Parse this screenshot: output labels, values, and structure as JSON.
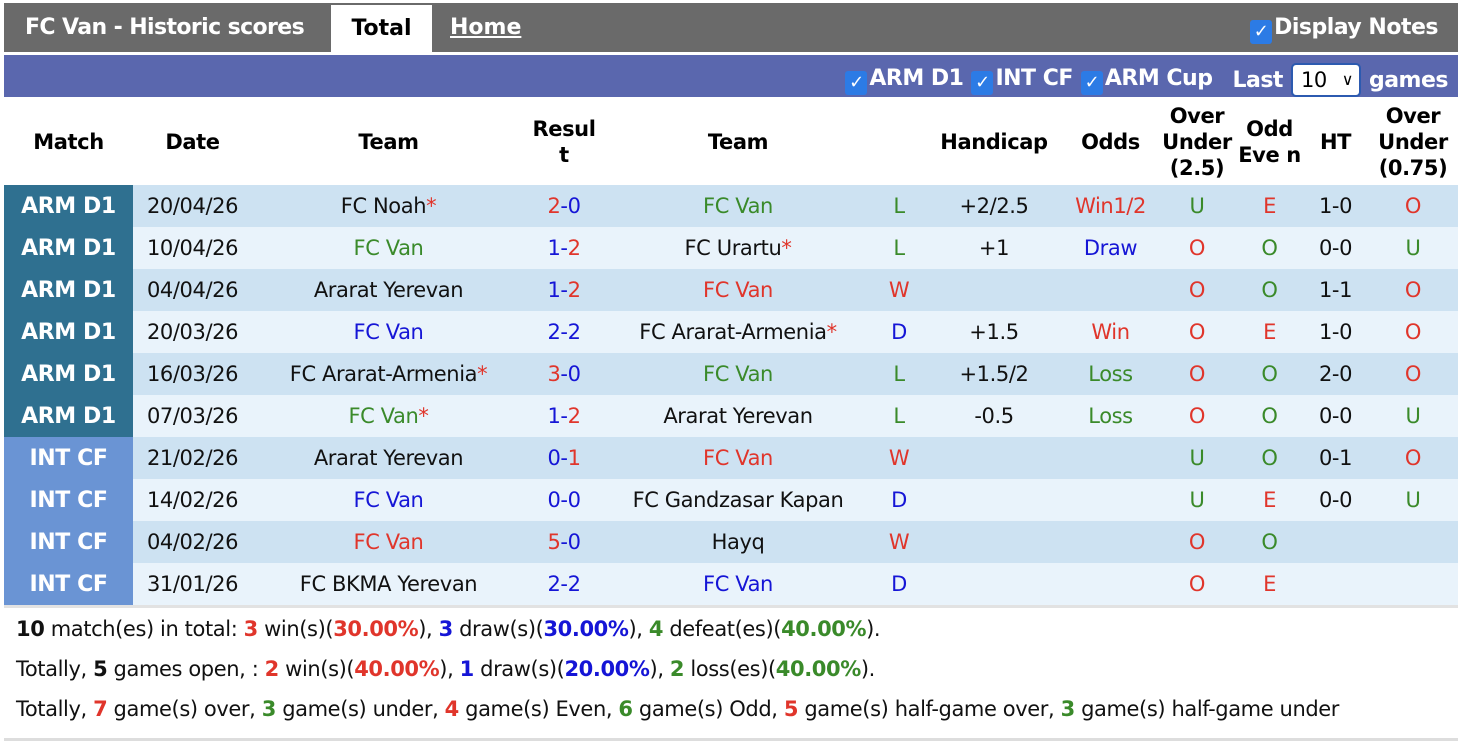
{
  "header": {
    "title": "FC Van - Historic scores",
    "tab_total": "Total",
    "tab_home": "Home",
    "display_notes": "Display Notes"
  },
  "filters": {
    "items": [
      "ARM D1",
      "INT CF",
      "ARM Cup"
    ],
    "last_label": "Last",
    "last_value": "10",
    "games_label": "games"
  },
  "columns": [
    "Match",
    "Date",
    "Team",
    "Resul t",
    "Team",
    "",
    "Handicap",
    "Odds",
    "Over Under (2.5)",
    "Odd Eve n",
    "HT",
    "Over Under (0.75)"
  ],
  "colors": {
    "red": "#e0352b",
    "blue": "#1515d6",
    "green": "#3a8a2a",
    "arm_d1": "#2f7090",
    "int_cf": "#6a94d4",
    "filter_bar": "#5a67ae"
  },
  "rows": [
    {
      "league": "ARM D1",
      "date": "20/04/26",
      "home": "FC Noah",
      "home_c": "k",
      "home_star": true,
      "sh": "2",
      "sh_c": "r",
      "sa": "0",
      "sa_c": "b",
      "away": "FC Van",
      "away_c": "g",
      "away_star": false,
      "res": "L",
      "res_c": "g",
      "hcp": "+2/2.5",
      "odds": "Win1/2",
      "odds_c": "r",
      "ou": "U",
      "ou_c": "g",
      "oe": "E",
      "oe_c": "r",
      "ht": "1-0",
      "ou2": "O",
      "ou2_c": "r"
    },
    {
      "league": "ARM D1",
      "date": "10/04/26",
      "home": "FC Van",
      "home_c": "g",
      "home_star": false,
      "sh": "1",
      "sh_c": "b",
      "sa": "2",
      "sa_c": "r",
      "away": "FC Urartu",
      "away_c": "k",
      "away_star": true,
      "res": "L",
      "res_c": "g",
      "hcp": "+1",
      "odds": "Draw",
      "odds_c": "b",
      "ou": "O",
      "ou_c": "r",
      "oe": "O",
      "oe_c": "g",
      "ht": "0-0",
      "ou2": "U",
      "ou2_c": "g"
    },
    {
      "league": "ARM D1",
      "date": "04/04/26",
      "home": "Ararat Yerevan",
      "home_c": "k",
      "home_star": false,
      "sh": "1",
      "sh_c": "b",
      "sa": "2",
      "sa_c": "r",
      "away": "FC Van",
      "away_c": "r",
      "away_star": false,
      "res": "W",
      "res_c": "r",
      "hcp": "",
      "odds": "",
      "odds_c": "k",
      "ou": "O",
      "ou_c": "r",
      "oe": "O",
      "oe_c": "g",
      "ht": "1-1",
      "ou2": "O",
      "ou2_c": "r"
    },
    {
      "league": "ARM D1",
      "date": "20/03/26",
      "home": "FC Van",
      "home_c": "b",
      "home_star": false,
      "sh": "2",
      "sh_c": "b",
      "sa": "2",
      "sa_c": "b",
      "away": "FC Ararat-Armenia",
      "away_c": "k",
      "away_star": true,
      "res": "D",
      "res_c": "b",
      "hcp": "+1.5",
      "odds": "Win",
      "odds_c": "r",
      "ou": "O",
      "ou_c": "r",
      "oe": "E",
      "oe_c": "r",
      "ht": "1-0",
      "ou2": "O",
      "ou2_c": "r"
    },
    {
      "league": "ARM D1",
      "date": "16/03/26",
      "home": "FC Ararat-Armenia",
      "home_c": "k",
      "home_star": true,
      "sh": "3",
      "sh_c": "r",
      "sa": "0",
      "sa_c": "b",
      "away": "FC Van",
      "away_c": "g",
      "away_star": false,
      "res": "L",
      "res_c": "g",
      "hcp": "+1.5/2",
      "odds": "Loss",
      "odds_c": "g",
      "ou": "O",
      "ou_c": "r",
      "oe": "O",
      "oe_c": "g",
      "ht": "2-0",
      "ou2": "O",
      "ou2_c": "r"
    },
    {
      "league": "ARM D1",
      "date": "07/03/26",
      "home": "FC Van",
      "home_c": "g",
      "home_star": true,
      "sh": "1",
      "sh_c": "b",
      "sa": "2",
      "sa_c": "r",
      "away": "Ararat Yerevan",
      "away_c": "k",
      "away_star": false,
      "res": "L",
      "res_c": "g",
      "hcp": "-0.5",
      "odds": "Loss",
      "odds_c": "g",
      "ou": "O",
      "ou_c": "r",
      "oe": "O",
      "oe_c": "g",
      "ht": "0-0",
      "ou2": "U",
      "ou2_c": "g"
    },
    {
      "league": "INT CF",
      "date": "21/02/26",
      "home": "Ararat Yerevan",
      "home_c": "k",
      "home_star": false,
      "sh": "0",
      "sh_c": "b",
      "sa": "1",
      "sa_c": "r",
      "away": "FC Van",
      "away_c": "r",
      "away_star": false,
      "res": "W",
      "res_c": "r",
      "hcp": "",
      "odds": "",
      "odds_c": "k",
      "ou": "U",
      "ou_c": "g",
      "oe": "O",
      "oe_c": "g",
      "ht": "0-1",
      "ou2": "O",
      "ou2_c": "r"
    },
    {
      "league": "INT CF",
      "date": "14/02/26",
      "home": "FC Van",
      "home_c": "b",
      "home_star": false,
      "sh": "0",
      "sh_c": "b",
      "sa": "0",
      "sa_c": "b",
      "away": "FC Gandzasar Kapan",
      "away_c": "k",
      "away_star": false,
      "res": "D",
      "res_c": "b",
      "hcp": "",
      "odds": "",
      "odds_c": "k",
      "ou": "U",
      "ou_c": "g",
      "oe": "E",
      "oe_c": "r",
      "ht": "0-0",
      "ou2": "U",
      "ou2_c": "g"
    },
    {
      "league": "INT CF",
      "date": "04/02/26",
      "home": "FC Van",
      "home_c": "r",
      "home_star": false,
      "sh": "5",
      "sh_c": "r",
      "sa": "0",
      "sa_c": "b",
      "away": "Hayq",
      "away_c": "k",
      "away_star": false,
      "res": "W",
      "res_c": "r",
      "hcp": "",
      "odds": "",
      "odds_c": "k",
      "ou": "O",
      "ou_c": "r",
      "oe": "O",
      "oe_c": "g",
      "ht": "",
      "ou2": "",
      "ou2_c": "k"
    },
    {
      "league": "INT CF",
      "date": "31/01/26",
      "home": "FC BKMA Yerevan",
      "home_c": "k",
      "home_star": false,
      "sh": "2",
      "sh_c": "b",
      "sa": "2",
      "sa_c": "b",
      "away": "FC Van",
      "away_c": "b",
      "away_star": false,
      "res": "D",
      "res_c": "b",
      "hcp": "",
      "odds": "",
      "odds_c": "k",
      "ou": "O",
      "ou_c": "r",
      "oe": "E",
      "oe_c": "r",
      "ht": "",
      "ou2": "",
      "ou2_c": "k"
    }
  ],
  "summary": [
    [
      {
        "t": "10",
        "c": "k",
        "b": true
      },
      {
        "t": " match(es) in total: "
      },
      {
        "t": "3",
        "c": "r",
        "b": true
      },
      {
        "t": " win(s)("
      },
      {
        "t": "30.00%",
        "c": "r",
        "b": true
      },
      {
        "t": "), "
      },
      {
        "t": "3",
        "c": "b",
        "b": true
      },
      {
        "t": " draw(s)("
      },
      {
        "t": "30.00%",
        "c": "b",
        "b": true
      },
      {
        "t": "), "
      },
      {
        "t": "4",
        "c": "g",
        "b": true
      },
      {
        "t": " defeat(es)("
      },
      {
        "t": "40.00%",
        "c": "g",
        "b": true
      },
      {
        "t": ")."
      }
    ],
    [
      {
        "t": "Totally, "
      },
      {
        "t": "5",
        "c": "k",
        "b": true
      },
      {
        "t": " games open, : "
      },
      {
        "t": "2",
        "c": "r",
        "b": true
      },
      {
        "t": " win(s)("
      },
      {
        "t": "40.00%",
        "c": "r",
        "b": true
      },
      {
        "t": "), "
      },
      {
        "t": "1",
        "c": "b",
        "b": true
      },
      {
        "t": " draw(s)("
      },
      {
        "t": "20.00%",
        "c": "b",
        "b": true
      },
      {
        "t": "), "
      },
      {
        "t": "2",
        "c": "g",
        "b": true
      },
      {
        "t": " loss(es)("
      },
      {
        "t": "40.00%",
        "c": "g",
        "b": true
      },
      {
        "t": ")."
      }
    ],
    [
      {
        "t": "Totally, "
      },
      {
        "t": "7",
        "c": "r",
        "b": true
      },
      {
        "t": " game(s) over, "
      },
      {
        "t": "3",
        "c": "g",
        "b": true
      },
      {
        "t": " game(s) under, "
      },
      {
        "t": "4",
        "c": "r",
        "b": true
      },
      {
        "t": " game(s) Even, "
      },
      {
        "t": "6",
        "c": "g",
        "b": true
      },
      {
        "t": " game(s) Odd, "
      },
      {
        "t": "5",
        "c": "r",
        "b": true
      },
      {
        "t": " game(s) half-game over, "
      },
      {
        "t": "3",
        "c": "g",
        "b": true
      },
      {
        "t": " game(s) half-game under"
      }
    ]
  ]
}
